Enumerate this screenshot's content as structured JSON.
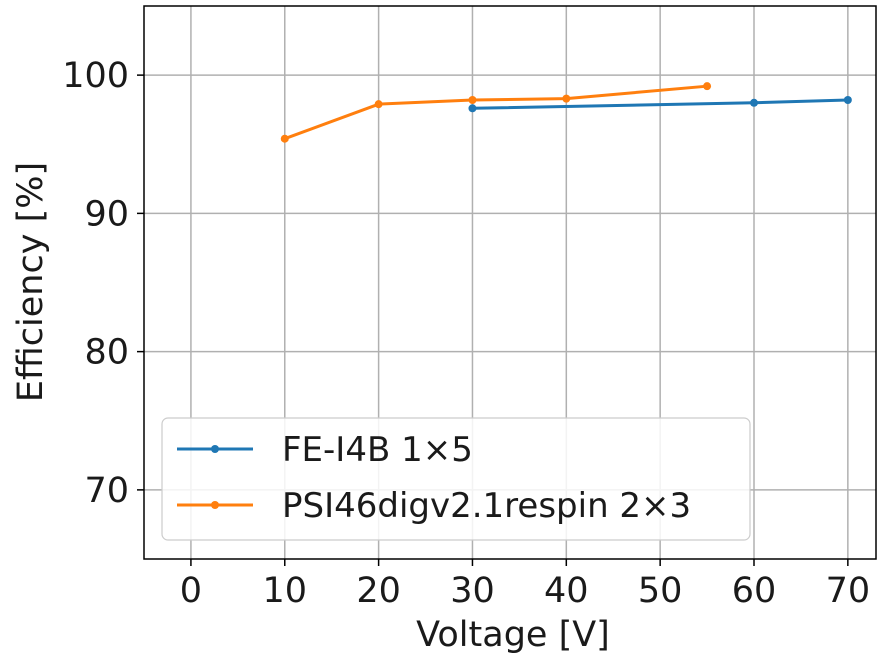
{
  "chart_data": {
    "type": "line",
    "title": "",
    "xlabel": "Voltage [V]",
    "ylabel": "Efficiency [%]",
    "xlim": [
      -5,
      73
    ],
    "ylim": [
      65,
      105
    ],
    "xticks": [
      0,
      10,
      20,
      30,
      40,
      50,
      60,
      70
    ],
    "yticks": [
      70,
      80,
      90,
      100
    ],
    "grid": true,
    "legend_position": "lower-left",
    "series": [
      {
        "name": "FE-I4B 1×5",
        "color": "#1f77b4",
        "x": [
          30,
          60,
          70
        ],
        "y": [
          97.6,
          98.0,
          98.2
        ]
      },
      {
        "name": "PSI46digv2.1respin 2×3",
        "color": "#ff7f0e",
        "x": [
          10,
          20,
          30,
          40,
          55
        ],
        "y": [
          95.4,
          97.9,
          98.2,
          98.3,
          99.2
        ]
      }
    ]
  }
}
